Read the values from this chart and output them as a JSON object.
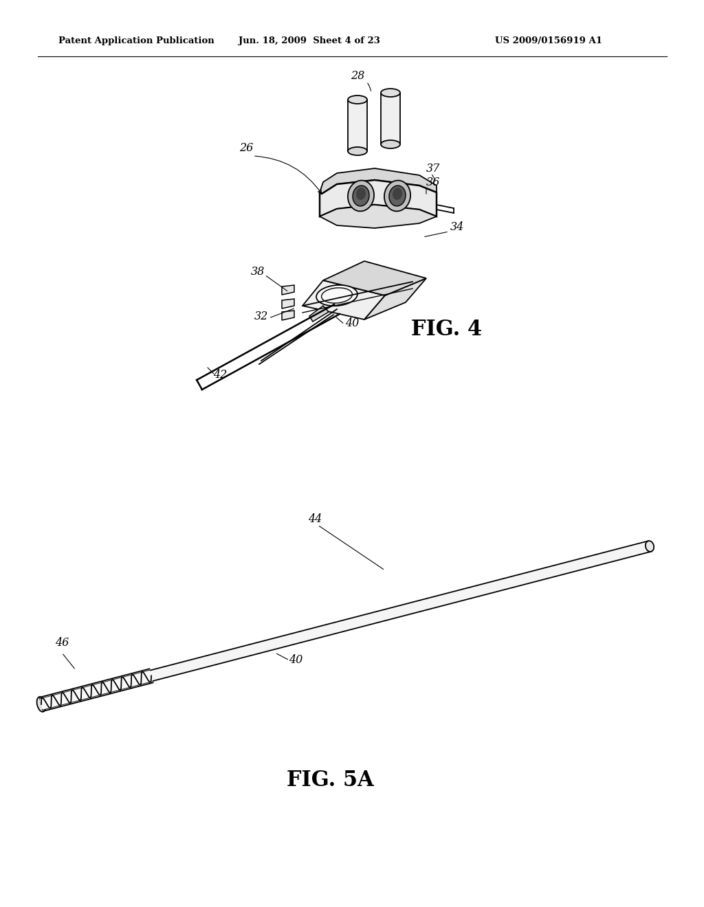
{
  "header_left": "Patent Application Publication",
  "header_mid": "Jun. 18, 2009  Sheet 4 of 23",
  "header_right": "US 2009/0156919 A1",
  "fig4_label": "FIG. 4",
  "fig5a_label": "FIG. 5A",
  "bg_color": "#ffffff",
  "line_color": "#000000",
  "header_fontsize": 9.5,
  "fig_label_fontsize": 22,
  "annotation_fontsize": 11.5
}
